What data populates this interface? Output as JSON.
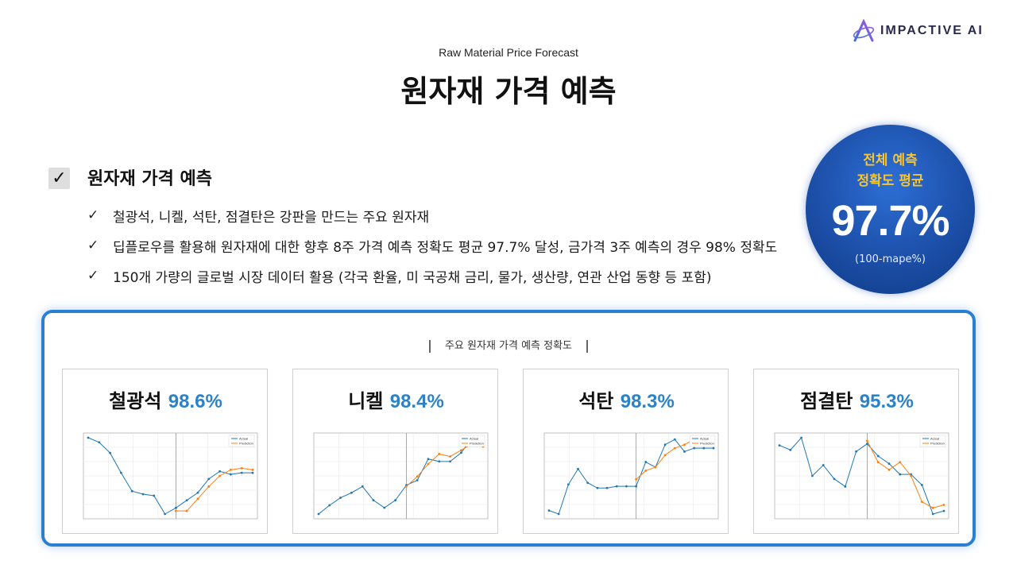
{
  "logo": {
    "text": "IMPACTIVE AI"
  },
  "header": {
    "subtitle": "Raw Material Price Forecast",
    "title": "원자재 가격 예측"
  },
  "section": {
    "heading": "원자재 가격 예측",
    "bullets": [
      "철광석, 니켈, 석탄, 점결탄은 강판을 만드는 주요 원자재",
      "딥플로우를 활용해 원자재에 대한 향후 8주 가격 예측 정확도 평균 97.7% 달성, 금가격 3주 예측의 경우 98% 정확도",
      "150개 가량의 글로벌 시장 데이터 활용 (각국 환율, 미 국공채 금리, 물가, 생산량, 연관 산업 동향 등 포함)"
    ]
  },
  "badge": {
    "line1": "전체 예측",
    "line2": "정확도 평균",
    "value": "97.7%",
    "note": "(100-mape%)"
  },
  "panel": {
    "title": "주요 원자재 가격 예측 정확도",
    "cards": [
      {
        "name": "철광석",
        "accuracy": "98.6%"
      },
      {
        "name": "니켈",
        "accuracy": "98.4%"
      },
      {
        "name": "석탄",
        "accuracy": "98.3%"
      },
      {
        "name": "점결탄",
        "accuracy": "95.3%"
      }
    ]
  },
  "colors": {
    "actual": "#1f77b4",
    "prediction": "#ff7f0e",
    "accent": "#2a82c9",
    "badge_text": "#f7c531",
    "panel_border": "#2a7fd0"
  },
  "chart_data": [
    {
      "type": "line",
      "series": [
        {
          "name": "Actual",
          "values": [
            98,
            95,
            88,
            75,
            63,
            61,
            60,
            48,
            52,
            57,
            62,
            71,
            76,
            74,
            75,
            75
          ]
        },
        {
          "name": "Prediction",
          "values": [
            null,
            null,
            null,
            null,
            null,
            null,
            null,
            null,
            50,
            50,
            58,
            66,
            73,
            77,
            78,
            77
          ]
        }
      ]
    },
    {
      "type": "line",
      "series": [
        {
          "name": "Actual",
          "values": [
            50,
            57,
            63,
            67,
            72,
            61,
            55,
            61,
            73,
            77,
            94,
            92,
            92,
            99,
            111,
            104
          ]
        },
        {
          "name": "Prediction",
          "values": [
            null,
            null,
            null,
            null,
            null,
            null,
            null,
            null,
            72,
            80,
            90,
            98,
            96,
            101,
            106,
            104
          ]
        }
      ]
    },
    {
      "type": "line",
      "series": [
        {
          "name": "Actual",
          "values": [
            63,
            61,
            78,
            87,
            79,
            76,
            76,
            77,
            77,
            77,
            91,
            88,
            101,
            104,
            97,
            99,
            99,
            99
          ]
        },
        {
          "name": "Prediction",
          "values": [
            null,
            null,
            null,
            null,
            null,
            null,
            null,
            null,
            null,
            81,
            86,
            88,
            95,
            99,
            101,
            104,
            105,
            105
          ]
        }
      ]
    },
    {
      "type": "line",
      "series": [
        {
          "name": "Actual",
          "values": [
            92,
            89,
            97,
            72,
            79,
            70,
            65,
            88,
            93,
            85,
            80,
            73,
            73,
            66,
            47,
            49
          ]
        },
        {
          "name": "Prediction",
          "values": [
            null,
            null,
            null,
            null,
            null,
            null,
            null,
            null,
            95,
            81,
            76,
            81,
            72,
            55,
            51,
            53
          ]
        }
      ]
    }
  ]
}
